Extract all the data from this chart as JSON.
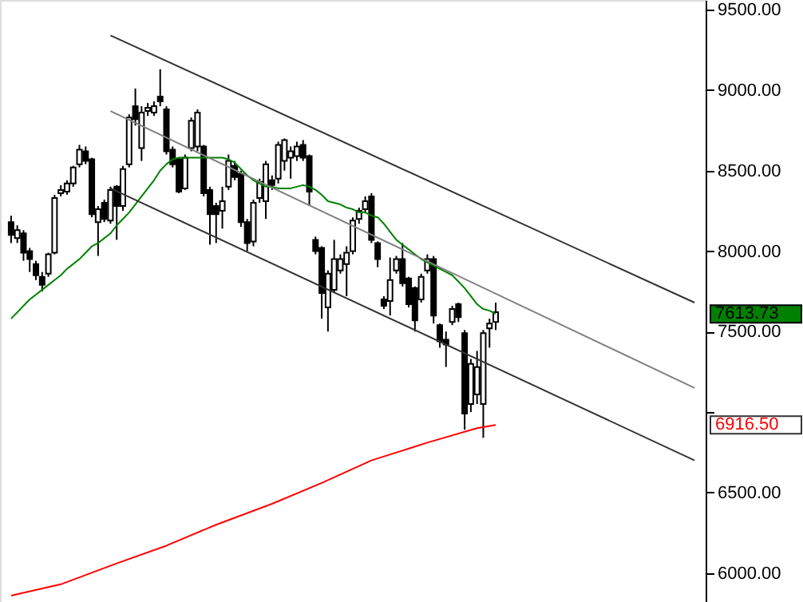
{
  "chart_data": {
    "type": "candlestick",
    "categories": [
      null,
      null,
      null,
      null,
      null,
      null,
      null,
      null,
      null,
      null,
      null,
      null,
      null,
      null,
      null,
      null,
      null,
      null,
      null,
      null,
      null,
      null,
      null,
      null,
      null,
      null,
      null,
      null,
      null,
      null,
      null,
      null,
      null,
      null,
      null,
      null,
      null,
      null,
      null,
      null,
      null,
      null,
      null,
      null,
      null,
      null,
      null,
      null,
      null,
      null,
      null,
      null,
      null,
      null,
      null,
      null,
      null,
      null,
      null,
      null,
      null,
      null,
      null,
      null,
      null,
      null,
      null,
      null,
      null,
      null,
      null,
      null,
      null,
      null,
      null,
      null,
      null,
      null,
      null,
      null,
      null,
      null,
      null,
      null,
      null,
      null,
      null,
      null,
      null,
      null,
      null,
      null,
      null,
      null,
      null,
      null,
      null,
      null,
      null,
      null,
      null,
      null,
      null,
      null,
      null,
      null,
      null,
      null,
      null,
      null,
      null
    ],
    "ohlc": [
      [
        8180,
        8220,
        8050,
        8100
      ],
      [
        8080,
        8160,
        8050,
        8130
      ],
      [
        8110,
        8130,
        7940,
        7990
      ],
      [
        8000,
        8020,
        7870,
        7950
      ],
      [
        7920,
        7940,
        7820,
        7850
      ],
      [
        7840,
        7870,
        7750,
        7790
      ],
      [
        7860,
        7990,
        7840,
        7980
      ],
      [
        7990,
        8350,
        7980,
        8330
      ],
      [
        8360,
        8410,
        8340,
        8380
      ],
      [
        8370,
        8440,
        8350,
        8420
      ],
      [
        8420,
        8530,
        8400,
        8520
      ],
      [
        8540,
        8660,
        8520,
        8630
      ],
      [
        8620,
        8650,
        8540,
        8560
      ],
      [
        8570,
        8580,
        8210,
        8230
      ],
      [
        8180,
        8280,
        7970,
        8260
      ],
      [
        8300,
        8320,
        8180,
        8200
      ],
      [
        8190,
        8400,
        8170,
        8380
      ],
      [
        8400,
        8410,
        8070,
        8280
      ],
      [
        8280,
        8530,
        8250,
        8510
      ],
      [
        8540,
        8850,
        8520,
        8830
      ],
      [
        8900,
        9010,
        8780,
        8820
      ],
      [
        8640,
        8900,
        8560,
        8860
      ],
      [
        8870,
        8920,
        8840,
        8890
      ],
      [
        8860,
        8930,
        8840,
        8900
      ],
      [
        8960,
        9130,
        8900,
        8930
      ],
      [
        8880,
        8900,
        8600,
        8620
      ],
      [
        8630,
        8650,
        8520,
        8540
      ],
      [
        8570,
        8580,
        8360,
        8370
      ],
      [
        8390,
        8600,
        8380,
        8580
      ],
      [
        8640,
        8830,
        8620,
        8810
      ],
      [
        8650,
        8880,
        8620,
        8860
      ],
      [
        8650,
        8660,
        8340,
        8360
      ],
      [
        8380,
        8400,
        8040,
        8230
      ],
      [
        8280,
        8300,
        8050,
        8230
      ],
      [
        8250,
        8400,
        8140,
        8310
      ],
      [
        8400,
        8600,
        8380,
        8560
      ],
      [
        8530,
        8560,
        8440,
        8460
      ],
      [
        8480,
        8500,
        8150,
        8180
      ],
      [
        8180,
        8200,
        8000,
        8050
      ],
      [
        8060,
        8320,
        8030,
        8300
      ],
      [
        8330,
        8450,
        8300,
        8430
      ],
      [
        8310,
        8560,
        8200,
        8540
      ],
      [
        8440,
        8470,
        8380,
        8410
      ],
      [
        8450,
        8680,
        8420,
        8660
      ],
      [
        8560,
        8700,
        8500,
        8690
      ],
      [
        8580,
        8650,
        8450,
        8620
      ],
      [
        8590,
        8680,
        8560,
        8650
      ],
      [
        8660,
        8690,
        8560,
        8580
      ],
      [
        8590,
        8600,
        8280,
        8370
      ],
      [
        8070,
        8090,
        7980,
        8000
      ],
      [
        8020,
        8030,
        7580,
        7740
      ],
      [
        7650,
        7880,
        7500,
        7860
      ],
      [
        7760,
        8070,
        7740,
        7950
      ],
      [
        7880,
        7980,
        7860,
        7950
      ],
      [
        7920,
        8030,
        7720,
        7990
      ],
      [
        8000,
        8210,
        7980,
        8190
      ],
      [
        8200,
        8270,
        8170,
        8250
      ],
      [
        8260,
        8340,
        8240,
        8310
      ],
      [
        8340,
        8360,
        8050,
        8070
      ],
      [
        8050,
        8060,
        7900,
        7950
      ],
      [
        7700,
        7720,
        7640,
        7660
      ],
      [
        7690,
        7960,
        7600,
        7820
      ],
      [
        7880,
        7970,
        7860,
        7950
      ],
      [
        7950,
        8050,
        7780,
        7800
      ],
      [
        7830,
        7840,
        7650,
        7670
      ],
      [
        7770,
        7780,
        7500,
        7570
      ],
      [
        7700,
        7860,
        7680,
        7840
      ],
      [
        7880,
        7980,
        7860,
        7950
      ],
      [
        7950,
        7970,
        7550,
        7600
      ],
      [
        7540,
        7550,
        7400,
        7440
      ],
      [
        7450,
        7500,
        7280,
        7420
      ],
      [
        7560,
        7660,
        7540,
        7640
      ],
      [
        7670,
        7680,
        7560,
        7590
      ],
      [
        7490,
        7510,
        6890,
        6990
      ],
      [
        7050,
        7330,
        7000,
        7300
      ],
      [
        7110,
        7380,
        7050,
        7280
      ],
      [
        7050,
        7510,
        6840,
        7490
      ],
      [
        7520,
        7580,
        7400,
        7550
      ],
      [
        7560,
        7680,
        7510,
        7620
      ],
      null,
      null,
      null,
      null,
      null,
      null,
      null,
      null,
      null,
      null,
      null,
      null,
      null,
      null,
      null,
      null,
      null,
      null,
      null,
      null,
      null,
      null,
      null,
      null,
      null,
      null,
      null,
      null,
      null,
      null,
      null,
      null
    ],
    "series": [
      {
        "type": "line",
        "color": "#008000",
        "values": [
          7580,
          7620,
          7660,
          7700,
          7730,
          7760,
          7790,
          7820,
          7850,
          7890,
          7920,
          7950,
          7990,
          8030,
          8050,
          8080,
          8110,
          8160,
          8200,
          8240,
          8290,
          8340,
          8390,
          8440,
          8500,
          8540,
          8570,
          8580,
          8580,
          8580,
          8580,
          8580,
          8580,
          8580,
          8580,
          8570,
          8550,
          8510,
          8470,
          8440,
          8420,
          8400,
          8400,
          8390,
          8390,
          8390,
          8400,
          8410,
          8400,
          8380,
          8350,
          8310,
          8300,
          8290,
          8270,
          8260,
          8240,
          8240,
          8220,
          8210,
          8170,
          8120,
          8070,
          8040,
          8010,
          7980,
          7950,
          7930,
          7910,
          7890,
          7870,
          7850,
          7810,
          7770,
          7720,
          7670,
          7640,
          7630,
          7610,
          null,
          null,
          null,
          null,
          null,
          null,
          null,
          null,
          null,
          null,
          null,
          null,
          null,
          null,
          null,
          null,
          null,
          null,
          null,
          null,
          null,
          null,
          null,
          null,
          null,
          null,
          null,
          null,
          null,
          null,
          null,
          null
        ]
      },
      {
        "type": "line",
        "color": "#ff0000",
        "values": [
          5860,
          null,
          null,
          null,
          null,
          null,
          null,
          null,
          5930,
          null,
          null,
          null,
          null,
          null,
          null,
          null,
          null,
          6060,
          null,
          null,
          null,
          null,
          null,
          null,
          null,
          6170,
          null,
          null,
          null,
          null,
          null,
          null,
          null,
          6300,
          null,
          null,
          null,
          null,
          null,
          null,
          null,
          null,
          6430,
          null,
          null,
          null,
          null,
          null,
          null,
          null,
          6560,
          null,
          null,
          null,
          null,
          null,
          null,
          null,
          6700,
          null,
          null,
          null,
          null,
          null,
          null,
          null,
          null,
          6810,
          null,
          null,
          null,
          null,
          null,
          null,
          null,
          6900,
          null,
          null,
          6920,
          null,
          null,
          null,
          null,
          null,
          null,
          null,
          null,
          null,
          null,
          null,
          null,
          null,
          null,
          null,
          null,
          null,
          null,
          null,
          null,
          null,
          null,
          null,
          null,
          null,
          null,
          null,
          null,
          null,
          null,
          null,
          null
        ]
      },
      {
        "type": "line",
        "color": "#333333",
        "values": [
          null,
          null,
          null,
          null,
          null,
          null,
          null,
          null,
          null,
          null,
          null,
          null,
          null,
          null,
          null,
          null,
          9340,
          null,
          null,
          null,
          null,
          null,
          null,
          null,
          null,
          null,
          null,
          null,
          null,
          null,
          null,
          null,
          null,
          null,
          null,
          null,
          null,
          null,
          null,
          null,
          null,
          null,
          null,
          null,
          null,
          null,
          null,
          null,
          null,
          null,
          null,
          null,
          null,
          null,
          null,
          null,
          null,
          null,
          null,
          null,
          null,
          null,
          null,
          null,
          null,
          null,
          null,
          null,
          null,
          null,
          null,
          null,
          null,
          null,
          null,
          null,
          null,
          null,
          null,
          null,
          null,
          null,
          null,
          null,
          null,
          null,
          null,
          null,
          null,
          null,
          null,
          null,
          null,
          null,
          null,
          null,
          null,
          null,
          null,
          null,
          null,
          null,
          null,
          null,
          null,
          null,
          null,
          null,
          null,
          null,
          7680
        ]
      },
      {
        "type": "line",
        "color": "#808080",
        "values": [
          null,
          null,
          null,
          null,
          null,
          null,
          null,
          null,
          null,
          null,
          null,
          null,
          null,
          null,
          null,
          null,
          8870,
          null,
          null,
          null,
          null,
          null,
          null,
          null,
          null,
          null,
          null,
          null,
          null,
          null,
          null,
          null,
          null,
          null,
          null,
          null,
          null,
          null,
          null,
          null,
          null,
          null,
          null,
          null,
          null,
          null,
          null,
          null,
          null,
          null,
          null,
          null,
          null,
          null,
          null,
          null,
          null,
          null,
          null,
          null,
          null,
          null,
          null,
          null,
          null,
          null,
          null,
          null,
          null,
          null,
          null,
          null,
          null,
          null,
          null,
          null,
          null,
          null,
          null,
          null,
          null,
          null,
          null,
          null,
          null,
          null,
          null,
          null,
          null,
          null,
          null,
          null,
          null,
          null,
          null,
          null,
          null,
          null,
          null,
          null,
          null,
          null,
          null,
          null,
          null,
          null,
          null,
          null,
          null,
          null,
          7150
        ]
      },
      {
        "type": "line",
        "color": "#333333",
        "values": [
          null,
          null,
          null,
          null,
          null,
          null,
          null,
          null,
          null,
          null,
          null,
          null,
          null,
          null,
          null,
          null,
          8390,
          null,
          null,
          null,
          null,
          null,
          null,
          null,
          null,
          null,
          null,
          null,
          null,
          null,
          null,
          null,
          null,
          null,
          null,
          null,
          null,
          null,
          null,
          null,
          null,
          null,
          null,
          null,
          null,
          null,
          null,
          null,
          null,
          null,
          null,
          null,
          null,
          null,
          null,
          null,
          null,
          null,
          null,
          null,
          null,
          null,
          null,
          null,
          null,
          null,
          null,
          null,
          null,
          null,
          null,
          null,
          null,
          null,
          null,
          null,
          null,
          null,
          null,
          null,
          null,
          null,
          null,
          null,
          null,
          null,
          null,
          null,
          null,
          null,
          null,
          null,
          null,
          null,
          null,
          null,
          null,
          null,
          null,
          null,
          null,
          null,
          null,
          null,
          null,
          null,
          null,
          null,
          null,
          null,
          6700
        ]
      }
    ],
    "ylim": [
      5820,
      9560
    ],
    "yticks": [
      {
        "value": 6000,
        "label": "6000.00"
      },
      {
        "value": 6500,
        "label": "6500.00"
      },
      {
        "value": 7000,
        "label": null
      },
      {
        "value": 7500,
        "label": "7500.00"
      },
      {
        "value": 8000,
        "label": "8000.00"
      },
      {
        "value": 8500,
        "label": "8500.00"
      },
      {
        "value": 9000,
        "label": "9000.00"
      },
      {
        "value": 9500,
        "label": "9500.00"
      }
    ],
    "annotations": [
      "7613.73",
      "6916.50"
    ],
    "tick_labels": "y",
    "grid": false
  }
}
